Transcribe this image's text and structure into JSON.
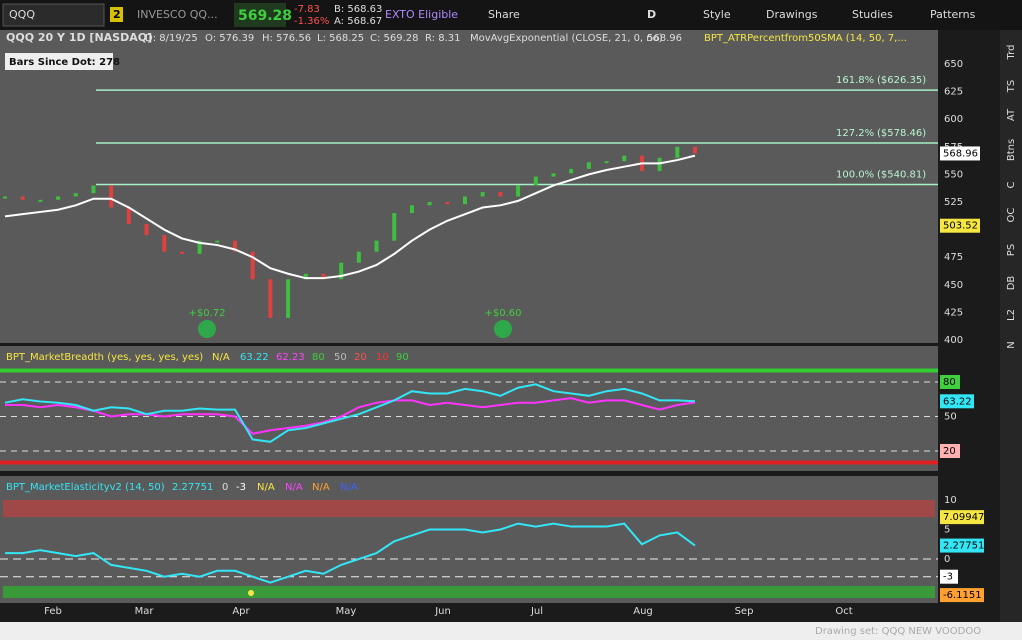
{
  "toolbar": {
    "symbol": "QQQ",
    "badge": "2",
    "company": "INVESCO QQ...",
    "last": "569.28",
    "change": "-7.83",
    "change_pct": "-1.36%",
    "bid": "B: 568.63",
    "ask": "A: 568.67",
    "exto": "EXTO Eligible",
    "share": "Share",
    "period": "D",
    "style": "Style",
    "drawings": "Drawings",
    "studies": "Studies",
    "patterns": "Patterns"
  },
  "header": {
    "title": "QQQ 20 Y 1D [NASDAQ]",
    "date": "D: 8/19/25",
    "open": "O: 576.39",
    "high": "H: 576.56",
    "low": "L: 568.25",
    "close": "C: 569.28",
    "range": "R: 8.31",
    "study": "MovAvgExponential (CLOSE, 21, 0, no)",
    "study_value": "568.96",
    "atr": "BPT_ATRPercentfrom50SMA (14, 50, 7,..."
  },
  "bars_since_dot": "Bars Since Dot: 278",
  "price_ticks": [
    650,
    625,
    600,
    575,
    550,
    525,
    475,
    450,
    425,
    400
  ],
  "fib": [
    {
      "label": "161.8%",
      "price_label": "($626.35)",
      "price": 626.35
    },
    {
      "label": "127.2%",
      "price_label": "($578.46)",
      "price": 578.46
    },
    {
      "label": "100.0%",
      "price_label": "($540.81)",
      "price": 540.81
    }
  ],
  "price_tags": [
    {
      "value": 568.96,
      "color": "#ffffff"
    },
    {
      "value": 503.52,
      "color": "#f5e642"
    }
  ],
  "dots": [
    "+$0.72",
    "+$0.60"
  ],
  "close": [
    530,
    527,
    527,
    530,
    533,
    540,
    520,
    505,
    495,
    480,
    478,
    490,
    490,
    480,
    455,
    420,
    455,
    460,
    455,
    470,
    480,
    490,
    515,
    522,
    525,
    523,
    530,
    534,
    530,
    540,
    548,
    551,
    555,
    561,
    562,
    567,
    553,
    565,
    575,
    569
  ],
  "ema": [
    512,
    514,
    516,
    518,
    522,
    528,
    528,
    520,
    510,
    500,
    492,
    488,
    486,
    482,
    475,
    465,
    460,
    456,
    456,
    458,
    462,
    468,
    478,
    490,
    500,
    508,
    514,
    520,
    522,
    526,
    533,
    540,
    545,
    550,
    554,
    557,
    560,
    560,
    563,
    567
  ],
  "breadth": {
    "title": "BPT_MarketBreadth (yes, yes, yes, yes)",
    "na": "N/A",
    "cyan_label": "63.22",
    "magenta_label": "62.23",
    "l80": "80",
    "l50": "50",
    "l20": "20",
    "l10": "10",
    "l90": "90",
    "cyan": [
      62,
      65,
      63,
      62,
      60,
      55,
      58,
      57,
      52,
      55,
      55,
      57,
      56,
      56,
      30,
      28,
      38,
      40,
      44,
      48,
      52,
      58,
      64,
      72,
      70,
      70,
      74,
      72,
      68,
      75,
      78,
      72,
      70,
      68,
      72,
      74,
      70,
      64,
      64,
      63.22
    ],
    "magenta": [
      60,
      60,
      58,
      60,
      58,
      55,
      50,
      52,
      52,
      50,
      52,
      52,
      52,
      50,
      35,
      38,
      40,
      42,
      45,
      50,
      58,
      62,
      64,
      64,
      60,
      62,
      60,
      58,
      60,
      62,
      62,
      64,
      66,
      62,
      64,
      64,
      60,
      56,
      60,
      62.23
    ]
  },
  "elasticity": {
    "title": "BPT_MarketElasticityv2 (14, 50)",
    "value": "2.27751",
    "zero": "0",
    "minus3": "-3",
    "na": "N/A",
    "ticks": [
      10,
      5,
      0
    ],
    "upper": "7.09947",
    "lower": "-6.1151",
    "cyan": [
      1,
      1,
      1.5,
      1,
      0.5,
      1,
      -1,
      -1.5,
      -2,
      -3,
      -2.5,
      -3,
      -2,
      -2,
      -3,
      -4,
      -3,
      -2,
      -2.5,
      -1,
      0,
      1,
      3,
      4,
      5,
      5,
      5,
      4.5,
      5,
      6,
      5.5,
      6,
      5.5,
      5.5,
      5.5,
      6,
      2.5,
      4,
      4.5,
      2.27751
    ]
  },
  "months": [
    "Feb",
    "Mar",
    "Apr",
    "May",
    "Jun",
    "Jul",
    "Aug",
    "Sep",
    "Oct"
  ],
  "sidebar": [
    "Trd",
    "TS",
    "AT",
    "Btns",
    "C",
    "OC",
    "PS",
    "DB",
    "L2",
    "N"
  ],
  "footer": "Drawing set: QQQ NEW VOODOO"
}
